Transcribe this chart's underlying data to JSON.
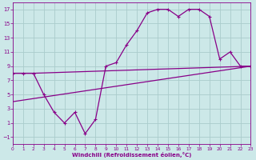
{
  "xlabel": "Windchill (Refroidissement éolien,°C)",
  "bg_color": "#cce8e8",
  "grid_color": "#aacccc",
  "line_color": "#880088",
  "xlim": [
    0,
    23
  ],
  "ylim": [
    -2,
    18
  ],
  "xticks": [
    0,
    1,
    2,
    3,
    4,
    5,
    6,
    7,
    8,
    9,
    10,
    11,
    12,
    13,
    14,
    15,
    16,
    17,
    18,
    19,
    20,
    21,
    22,
    23
  ],
  "yticks": [
    -1,
    1,
    3,
    5,
    7,
    9,
    11,
    13,
    15,
    17
  ],
  "line1_x": [
    0,
    1,
    2,
    3,
    4,
    5,
    6,
    7,
    8,
    9,
    10,
    11,
    12,
    13,
    14,
    15,
    16,
    17,
    18,
    19,
    20,
    21,
    22,
    23
  ],
  "line1_y": [
    8,
    8,
    8,
    5,
    2.5,
    1,
    2.5,
    -0.5,
    1.5,
    9,
    9.5,
    12,
    14,
    16.5,
    17,
    17,
    16,
    17,
    17,
    16,
    10,
    11,
    9,
    9
  ],
  "line2_x": [
    0,
    1,
    2,
    23
  ],
  "line2_y": [
    8,
    8,
    8,
    9
  ],
  "line3_x": [
    0,
    23
  ],
  "line3_y": [
    4,
    9
  ]
}
